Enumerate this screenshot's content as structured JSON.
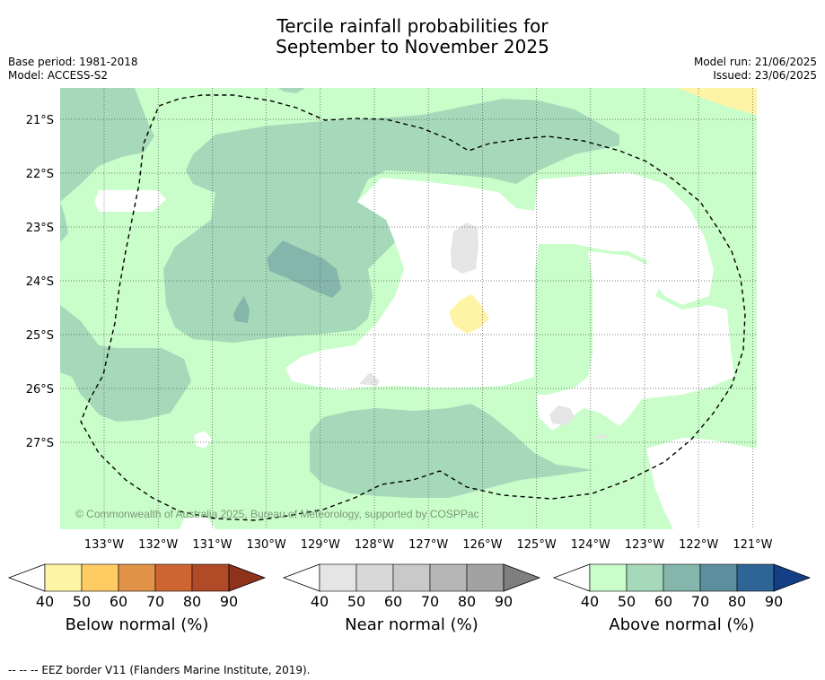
{
  "title_line1": "Tercile rainfall probabilities for",
  "title_line2": "September to November 2025",
  "base_period": "Base period: 1981-2018",
  "model": "Model: ACCESS-S2",
  "model_run": "Model run: 21/06/2025",
  "issued": "Issued: 23/06/2025",
  "copyright": "© Commonwealth of Australia 2025, Bureau of Meteorology, supported by COSPPac",
  "lon_labels": [
    "133°W",
    "132°W",
    "131°W",
    "130°W",
    "129°W",
    "128°W",
    "127°W",
    "126°W",
    "125°W",
    "124°W",
    "123°W",
    "122°W",
    "121°W"
  ],
  "lat_labels": [
    "21°S",
    "22°S",
    "23°S",
    "24°S",
    "25°S",
    "26°S",
    "27°S"
  ],
  "colorbars": [
    {
      "label": "Below normal (%)",
      "ticks": [
        "40",
        "50",
        "60",
        "70",
        "80",
        "90"
      ],
      "colors": [
        "#fff3a5",
        "#fecc62",
        "#e19347",
        "#ce6532",
        "#b04a27"
      ],
      "over": "#90311b"
    },
    {
      "label": "Near normal (%)",
      "ticks": [
        "40",
        "50",
        "60",
        "70",
        "80",
        "90"
      ],
      "colors": [
        "#e5e5e5",
        "#d8d8d8",
        "#c9c9c9",
        "#b6b6b6",
        "#a2a2a2"
      ],
      "over": "#7f7f7f"
    },
    {
      "label": "Above normal (%)",
      "ticks": [
        "40",
        "50",
        "60",
        "70",
        "80",
        "90"
      ],
      "colors": [
        "#c9fdc9",
        "#a5d9b9",
        "#84b6ac",
        "#5b8f9d",
        "#2e6496"
      ],
      "over": "#143f86"
    }
  ],
  "footnote": "--  --  -- EEZ border V11 (Flanders Marine Institute, 2019)."
}
